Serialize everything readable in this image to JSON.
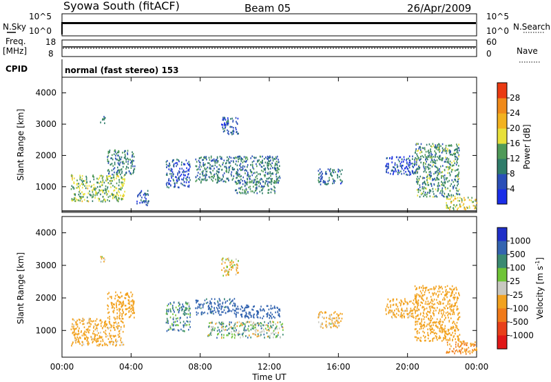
{
  "header": {
    "title": "Syowa South (fitACF)",
    "beam": "Beam 05",
    "date": "26/Apr/2009"
  },
  "noise_panel": {
    "left_label": "N.Sky",
    "right_label": "N.Search",
    "left_ticks": [
      "10^5",
      "10^0"
    ],
    "right_ticks": [
      "10^5",
      "10^0"
    ]
  },
  "freq_panel": {
    "left_label_1": "Freq.",
    "left_label_2": "[MHz]",
    "right_label": "Nave",
    "left_ticks": [
      "18",
      "8"
    ],
    "right_ticks": [
      "60",
      "0"
    ]
  },
  "cpid": {
    "label": "CPID",
    "value": "normal (fast stereo) 153"
  },
  "panels": {
    "power_ylabel": "Slant Range [km]",
    "velocity_ylabel": "Slant Range [km]",
    "yticks": [
      "1000",
      "2000",
      "3000",
      "4000"
    ]
  },
  "x_axis": {
    "label": "Time UT",
    "ticks": [
      "00:00",
      "04:00",
      "08:00",
      "12:00",
      "16:00",
      "20:00",
      "00:00"
    ]
  },
  "power_colorbar": {
    "label": "Power [dB]",
    "ticks": [
      "4",
      "8",
      "12",
      "16",
      "20",
      "24",
      "28"
    ],
    "colors": [
      "#1a2ee8",
      "#2a4fb8",
      "#2f7c6a",
      "#4f9a58",
      "#e8e03a",
      "#f2b21f",
      "#f08a1a",
      "#ea3a12"
    ]
  },
  "velocity_colorbar": {
    "label": "Velocity [m s^-1]",
    "ticks": [
      "1000",
      "500",
      "100",
      "25",
      "-25",
      "-100",
      "-500",
      "-1000"
    ],
    "colors": [
      "#1f2fc8",
      "#3364b0",
      "#3a8a72",
      "#6fc437",
      "#c8c8c0",
      "#f2a21f",
      "#f07a1a",
      "#e8401a",
      "#e01818"
    ]
  },
  "chart_data": {
    "type": "heatmap",
    "x_range": [
      "00:00",
      "24:00"
    ],
    "y_range_km": [
      180,
      4500
    ],
    "power_scale_db": [
      0,
      30
    ],
    "velocity_scale_ms": [
      -1000,
      1000
    ],
    "power_regions": [
      {
        "t": [
          0.5,
          3.6
        ],
        "r": [
          550,
          1400
        ],
        "v": 14
      },
      {
        "t": [
          2.6,
          4.2
        ],
        "r": [
          1400,
          2200
        ],
        "v": 10
      },
      {
        "t": [
          2.2,
          2.5
        ],
        "r": [
          3050,
          3300
        ],
        "v": 8
      },
      {
        "t": [
          4.3,
          5.0
        ],
        "r": [
          400,
          900
        ],
        "v": 6
      },
      {
        "t": [
          6.0,
          7.4
        ],
        "r": [
          1000,
          1900
        ],
        "v": 5
      },
      {
        "t": [
          7.7,
          12.6
        ],
        "r": [
          1150,
          2000
        ],
        "v": 9
      },
      {
        "t": [
          10.0,
          12.3
        ],
        "r": [
          800,
          1200
        ],
        "v": 10
      },
      {
        "t": [
          9.2,
          10.2
        ],
        "r": [
          2700,
          3250
        ],
        "v": 6
      },
      {
        "t": [
          14.8,
          16.2
        ],
        "r": [
          1100,
          1600
        ],
        "v": 8
      },
      {
        "t": [
          18.7,
          20.6
        ],
        "r": [
          1400,
          2000
        ],
        "v": 5
      },
      {
        "t": [
          20.4,
          23.0
        ],
        "r": [
          700,
          2400
        ],
        "v": 11
      },
      {
        "t": [
          22.2,
          24.0
        ],
        "r": [
          300,
          700
        ],
        "v": 17
      }
    ],
    "velocity_regions": [
      {
        "t": [
          0.5,
          3.6
        ],
        "r": [
          550,
          1400
        ],
        "v": -200
      },
      {
        "t": [
          2.6,
          4.2
        ],
        "r": [
          1400,
          2200
        ],
        "v": -250
      },
      {
        "t": [
          2.2,
          2.5
        ],
        "r": [
          3050,
          3300
        ],
        "v": -120
      },
      {
        "t": [
          6.0,
          7.4
        ],
        "r": [
          1000,
          1900
        ],
        "v": 80
      },
      {
        "t": [
          7.7,
          10.0
        ],
        "r": [
          1500,
          2000
        ],
        "v": 200
      },
      {
        "t": [
          10.0,
          12.6
        ],
        "r": [
          1400,
          1800
        ],
        "v": 300
      },
      {
        "t": [
          8.4,
          12.8
        ],
        "r": [
          800,
          1300
        ],
        "v": 0
      },
      {
        "t": [
          9.2,
          10.2
        ],
        "r": [
          2700,
          3250
        ],
        "v": -100
      },
      {
        "t": [
          14.8,
          16.2
        ],
        "r": [
          1100,
          1600
        ],
        "v": -150
      },
      {
        "t": [
          18.7,
          20.6
        ],
        "r": [
          1400,
          2000
        ],
        "v": -200
      },
      {
        "t": [
          20.4,
          23.0
        ],
        "r": [
          700,
          2400
        ],
        "v": -300
      },
      {
        "t": [
          22.2,
          24.0
        ],
        "r": [
          300,
          700
        ],
        "v": -500
      }
    ]
  }
}
